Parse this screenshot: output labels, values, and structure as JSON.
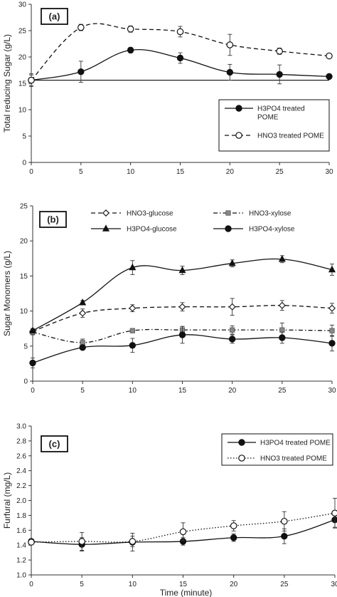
{
  "chart_data": [
    {
      "type": "line",
      "panel_label": "(a)",
      "xlabel": "",
      "ylabel": "Total reducing Sugar (g/L)",
      "x": [
        0,
        5,
        10,
        15,
        20,
        25,
        30
      ],
      "xticks": [
        "0",
        "5",
        "10",
        "15",
        "20",
        "25",
        "30"
      ],
      "xlim": [
        0,
        30
      ],
      "yticks": [
        "0",
        "5",
        "10",
        "15",
        "20",
        "25",
        "30"
      ],
      "ylim": [
        0,
        30
      ],
      "legend_position": "bottom-right",
      "series": [
        {
          "name_lines": [
            "H3PO4 treated",
            "POME"
          ],
          "values": [
            15.6,
            17.2,
            21.3,
            19.8,
            17.1,
            16.7,
            16.3
          ],
          "errors": [
            1.0,
            2.0,
            0.5,
            1.0,
            1.5,
            1.8,
            0.0
          ],
          "marker": "filled-circle",
          "line": "solid",
          "color": "#111111"
        },
        {
          "name_lines": [
            "HNO3 treated POME"
          ],
          "values": [
            15.6,
            25.6,
            25.3,
            24.8,
            22.3,
            21.1,
            20.2
          ],
          "errors": [
            1.2,
            0.6,
            0.6,
            1.0,
            2.0,
            0.6,
            0.0
          ],
          "marker": "open-circle",
          "line": "dashed",
          "color": "#111111"
        }
      ],
      "reference_line": 15.6
    },
    {
      "type": "line",
      "panel_label": "(b)",
      "xlabel": "",
      "ylabel": "Sugar Monomers (g/L)",
      "x": [
        0,
        5,
        10,
        15,
        20,
        25,
        30
      ],
      "xticks": [
        "0",
        "5",
        "10",
        "15",
        "20",
        "25",
        "30"
      ],
      "xlim": [
        0,
        30
      ],
      "yticks": [
        "0",
        "5",
        "10",
        "15",
        "20",
        "25"
      ],
      "ylim": [
        0,
        25
      ],
      "legend_position": "top",
      "series": [
        {
          "name_lines": [
            "HNO3-glucose"
          ],
          "values": [
            7.1,
            9.7,
            10.4,
            10.6,
            10.6,
            10.8,
            10.4
          ],
          "errors": [
            0.4,
            0.6,
            0.5,
            0.6,
            1.2,
            0.7,
            0.7
          ],
          "marker": "open-diamond",
          "line": "dashed",
          "color": "#111111"
        },
        {
          "name_lines": [
            "HNO3-xylose"
          ],
          "values": [
            7.0,
            5.5,
            7.2,
            7.3,
            7.3,
            7.3,
            7.2
          ],
          "errors": [
            0.4,
            0.5,
            0.3,
            0.5,
            0.6,
            1.0,
            0.8
          ],
          "marker": "grey-square",
          "line": "dash-dot",
          "color": "#111111"
        },
        {
          "name_lines": [
            "H3PO4-glucose"
          ],
          "values": [
            7.2,
            11.2,
            16.2,
            15.8,
            16.8,
            17.4,
            15.9
          ],
          "errors": [
            0.3,
            0.3,
            1.0,
            0.6,
            0.5,
            0.5,
            0.8
          ],
          "marker": "filled-triangle",
          "line": "solid",
          "color": "#111111"
        },
        {
          "name_lines": [
            "H3PO4-xylose"
          ],
          "values": [
            2.6,
            4.8,
            5.1,
            6.6,
            6.0,
            6.2,
            5.4
          ],
          "errors": [
            0.7,
            0.3,
            1.0,
            1.2,
            0.6,
            0.8,
            1.1
          ],
          "marker": "filled-circle",
          "line": "solid",
          "color": "#111111"
        }
      ]
    },
    {
      "type": "line",
      "panel_label": "(c)",
      "xlabel": "Time (minute)",
      "ylabel": "Furfural (mg/L)",
      "x": [
        0,
        5,
        10,
        15,
        20,
        25,
        30
      ],
      "xticks": [
        "0",
        "5",
        "10",
        "15",
        "20",
        "25",
        "30"
      ],
      "xlim": [
        0,
        30
      ],
      "yticks": [
        "1.0",
        "1.2",
        "1.4",
        "1.6",
        "1.8",
        "2.0",
        "2.2",
        "2.4",
        "2.6",
        "2.8",
        "3.0"
      ],
      "ylim": [
        1.0,
        3.0
      ],
      "legend_position": "top-right",
      "series": [
        {
          "name_lines": [
            "H3PO4 treated POME"
          ],
          "values": [
            1.45,
            1.41,
            1.44,
            1.45,
            1.5,
            1.52,
            1.74
          ],
          "errors": [
            0.03,
            0.09,
            0.12,
            0.05,
            0.05,
            0.1,
            0.1
          ],
          "marker": "filled-circle",
          "line": "solid",
          "color": "#111111"
        },
        {
          "name_lines": [
            "HNO3 treated POME"
          ],
          "values": [
            1.44,
            1.45,
            1.45,
            1.58,
            1.66,
            1.72,
            1.83
          ],
          "errors": [
            0.03,
            0.12,
            0.07,
            0.12,
            0.07,
            0.13,
            0.2
          ],
          "marker": "open-circle",
          "line": "dotted",
          "color": "#111111"
        }
      ]
    }
  ]
}
